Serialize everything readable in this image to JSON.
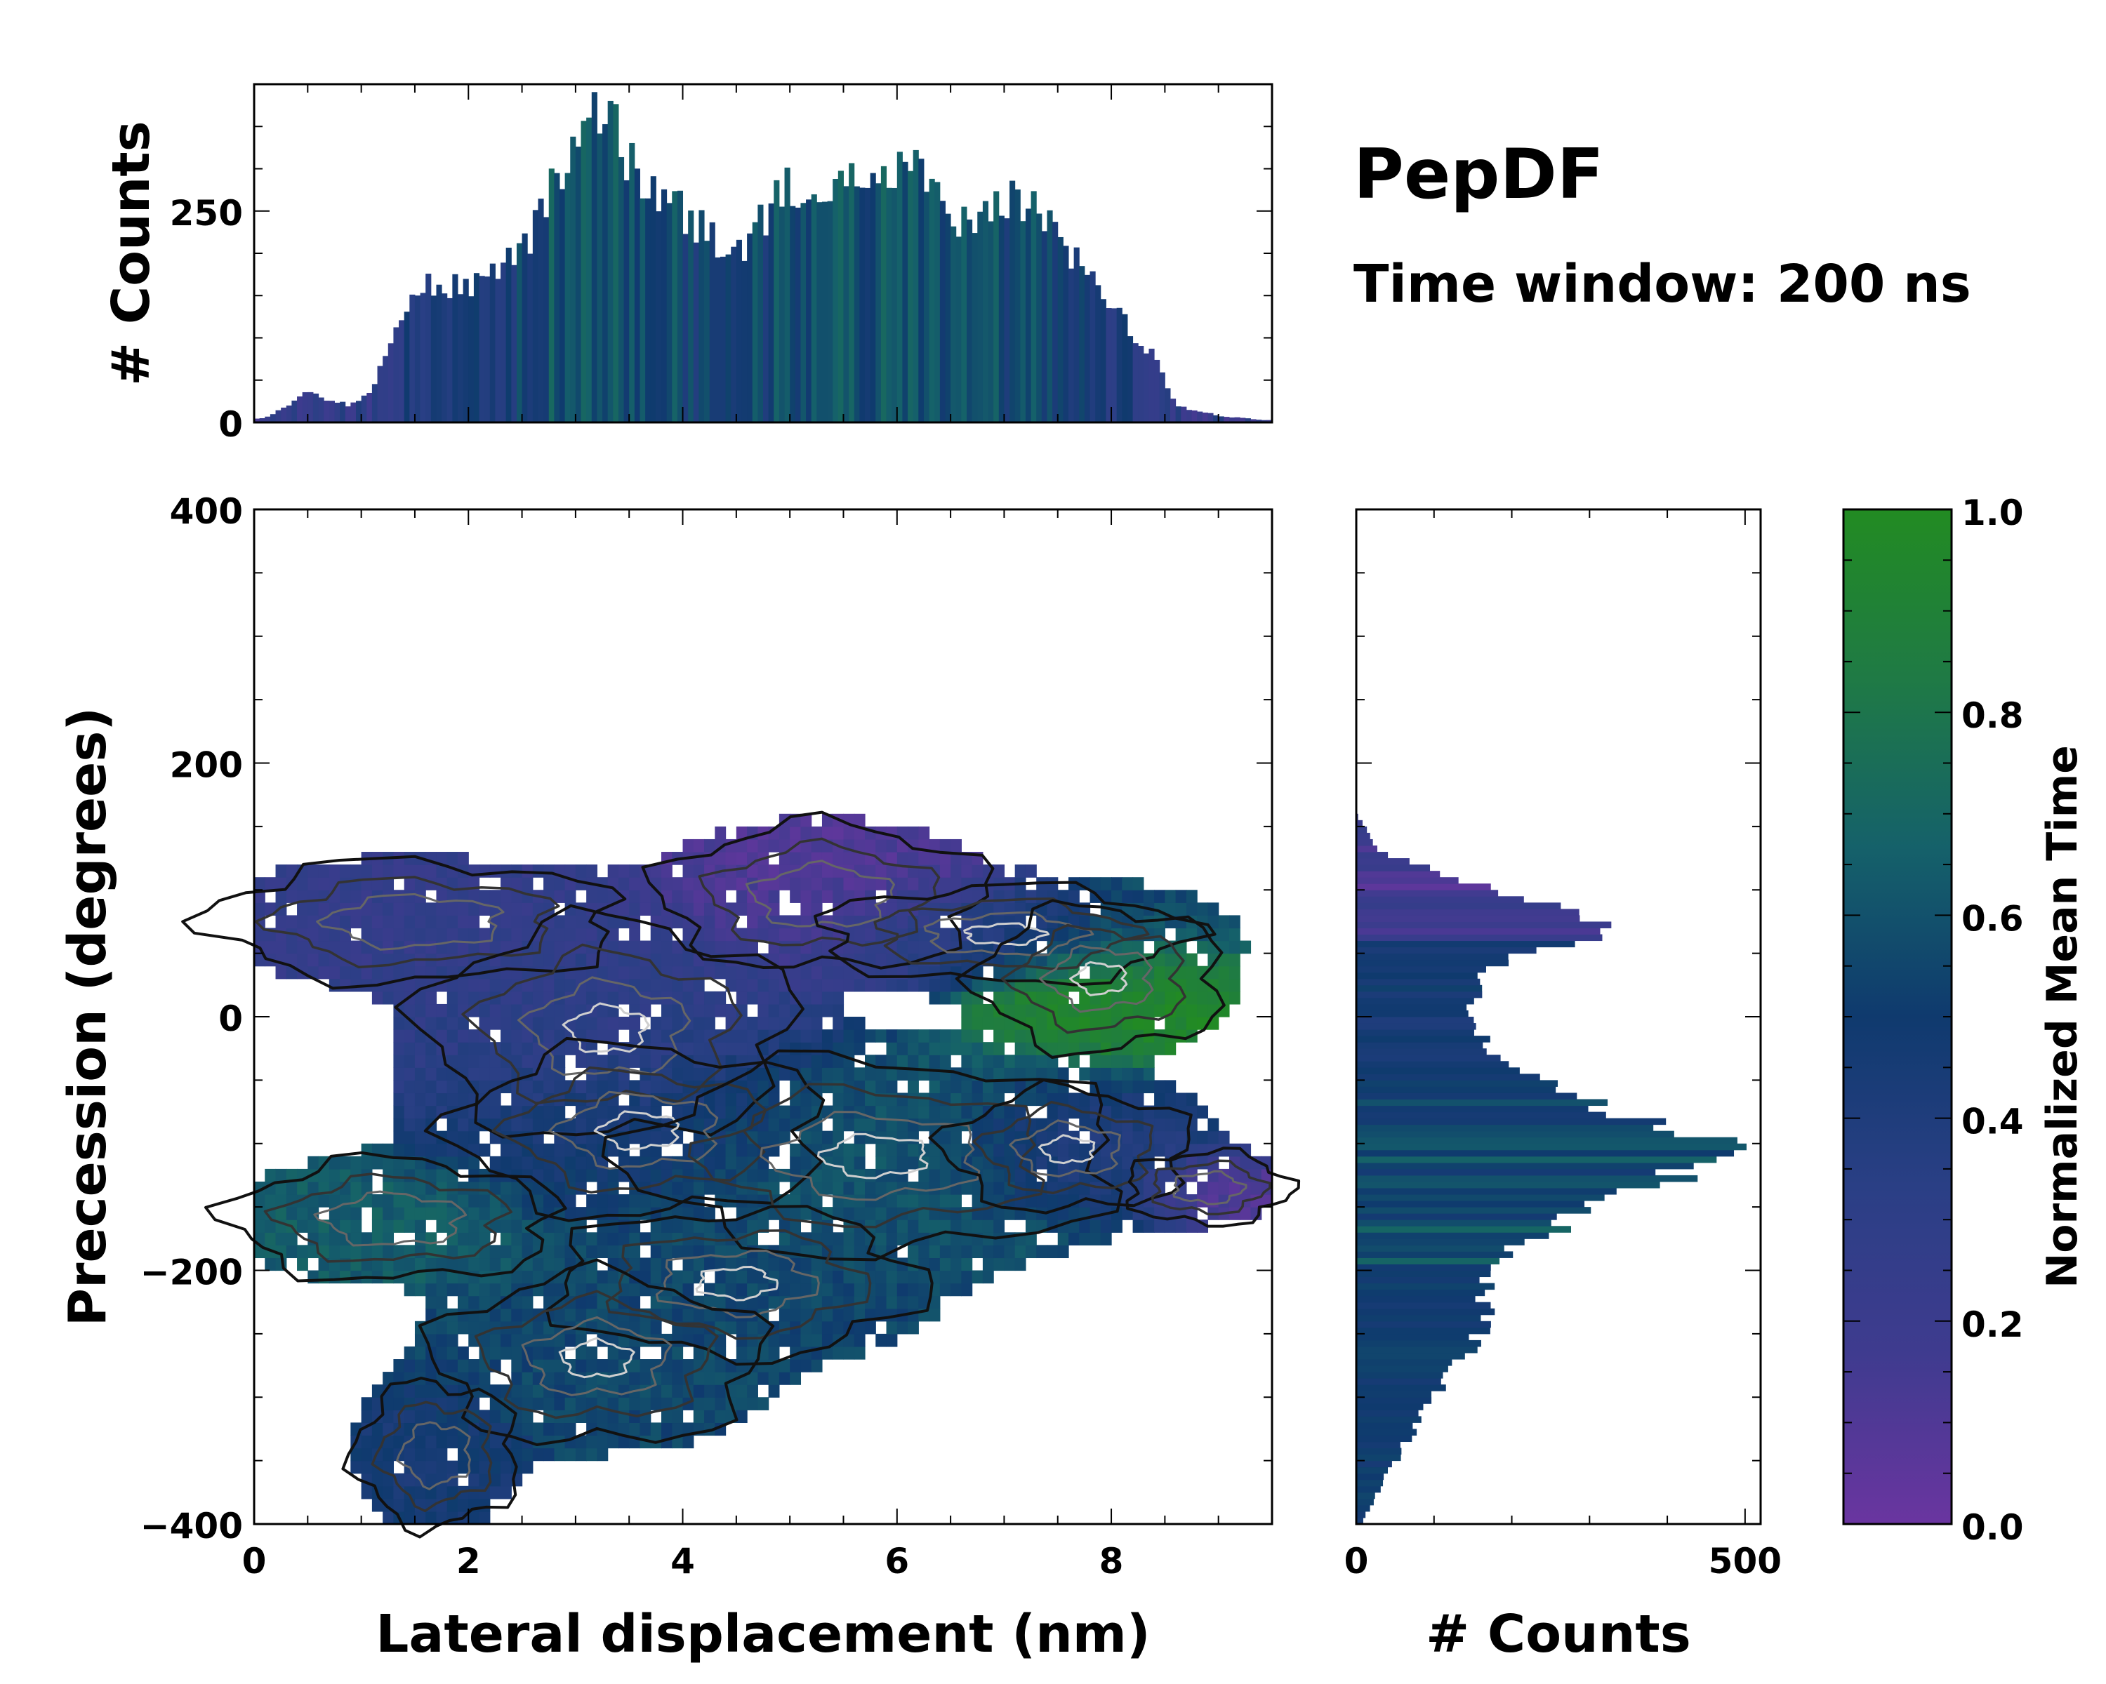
{
  "chart_data": [
    {
      "type": "heatmap",
      "name": "joint",
      "xlabel": "Lateral displacement (nm)",
      "ylabel": "Precession (degrees)",
      "xlim": [
        0,
        9.5
      ],
      "ylim": [
        -400,
        400
      ],
      "xticks": [
        0,
        2,
        4,
        6,
        8
      ],
      "yticks": [
        -400,
        -200,
        0,
        200,
        400
      ],
      "xtick_labels": [
        "0",
        "2",
        "4",
        "6",
        "8"
      ],
      "ytick_labels": [
        "−400",
        "−200",
        "0",
        "200",
        "400"
      ],
      "color_encoding": "Normalized Mean Time",
      "clusters": [
        {
          "x": 1.5,
          "y": 75,
          "sx": 1.0,
          "sy": 25,
          "w": 0.5,
          "t": 0.25
        },
        {
          "x": 3.3,
          "y": -10,
          "sx": 0.9,
          "sy": 45,
          "w": 0.7,
          "t": 0.3
        },
        {
          "x": 3.6,
          "y": -90,
          "sx": 0.9,
          "sy": 35,
          "w": 0.9,
          "t": 0.45
        },
        {
          "x": 5.3,
          "y": 95,
          "sx": 0.8,
          "sy": 30,
          "w": 0.5,
          "t": 0.1
        },
        {
          "x": 7.0,
          "y": 65,
          "sx": 0.9,
          "sy": 20,
          "w": 0.8,
          "t": 0.35
        },
        {
          "x": 7.9,
          "y": 30,
          "sx": 0.6,
          "sy": 30,
          "w": 0.6,
          "t": 0.95
        },
        {
          "x": 5.8,
          "y": -110,
          "sx": 1.2,
          "sy": 40,
          "w": 1.0,
          "t": 0.6
        },
        {
          "x": 7.6,
          "y": -105,
          "sx": 0.6,
          "sy": 25,
          "w": 0.8,
          "t": 0.35
        },
        {
          "x": 8.9,
          "y": -135,
          "sx": 0.4,
          "sy": 15,
          "w": 0.3,
          "t": 0.05
        },
        {
          "x": 1.3,
          "y": -160,
          "sx": 0.8,
          "sy": 25,
          "w": 0.5,
          "t": 0.65
        },
        {
          "x": 4.5,
          "y": -210,
          "sx": 0.9,
          "sy": 30,
          "w": 0.7,
          "t": 0.55
        },
        {
          "x": 3.2,
          "y": -270,
          "sx": 0.8,
          "sy": 35,
          "w": 0.6,
          "t": 0.55
        },
        {
          "x": 1.7,
          "y": -345,
          "sx": 0.4,
          "sy": 30,
          "w": 0.5,
          "t": 0.45
        }
      ]
    },
    {
      "type": "bar",
      "name": "top-marginal",
      "xlabel": "",
      "ylabel": "# Counts",
      "xlim": [
        0,
        9.5
      ],
      "ylim": [
        0,
        400
      ],
      "yticks": [
        0,
        250
      ],
      "ytick_labels": [
        "0",
        "250"
      ],
      "bin_width": 0.05,
      "x": [
        0.1,
        0.5,
        0.9,
        1.1,
        1.5,
        2.0,
        2.5,
        2.8,
        3.0,
        3.2,
        3.4,
        3.6,
        4.0,
        4.5,
        4.8,
        5.0,
        5.4,
        5.8,
        6.2,
        6.5,
        6.7,
        7.0,
        7.4,
        7.8,
        8.1,
        8.4,
        8.6,
        9.0,
        9.4
      ],
      "values": [
        5,
        35,
        20,
        40,
        165,
        160,
        200,
        280,
        345,
        365,
        340,
        280,
        250,
        195,
        250,
        280,
        285,
        290,
        295,
        235,
        240,
        270,
        240,
        170,
        120,
        80,
        20,
        8,
        3
      ]
    },
    {
      "type": "bar",
      "name": "right-marginal",
      "orientation": "horizontal",
      "xlabel": "# Counts",
      "xlim": [
        0,
        520
      ],
      "ylim": [
        -400,
        400
      ],
      "xticks": [
        0,
        500
      ],
      "xtick_labels": [
        "0",
        "500"
      ],
      "bin_width": 5,
      "y": [
        -395,
        -360,
        -320,
        -280,
        -240,
        -200,
        -180,
        -150,
        -125,
        -105,
        -95,
        -80,
        -60,
        -40,
        -10,
        10,
        40,
        70,
        80,
        100,
        130,
        160
      ],
      "values": [
        10,
        40,
        80,
        120,
        170,
        160,
        210,
        310,
        420,
        470,
        450,
        370,
        260,
        200,
        160,
        150,
        170,
        330,
        300,
        180,
        30,
        0
      ]
    },
    {
      "type": "colorbar",
      "name": "colorbar",
      "label": "Normalized Mean Time",
      "range": [
        0,
        1
      ],
      "ticks": [
        0.0,
        0.2,
        0.4,
        0.6,
        0.8,
        1.0
      ],
      "tick_labels": [
        "0.0",
        "0.2",
        "0.4",
        "0.6",
        "0.8",
        "1.0"
      ],
      "colors": [
        "#6a35a0",
        "#3f3b8f",
        "#2a3f85",
        "#0f3a6e",
        "#15616a",
        "#1f7a45",
        "#228b22"
      ]
    }
  ],
  "annotations": {
    "title": "PepDF",
    "subtitle": "Time window: 200 ns"
  }
}
